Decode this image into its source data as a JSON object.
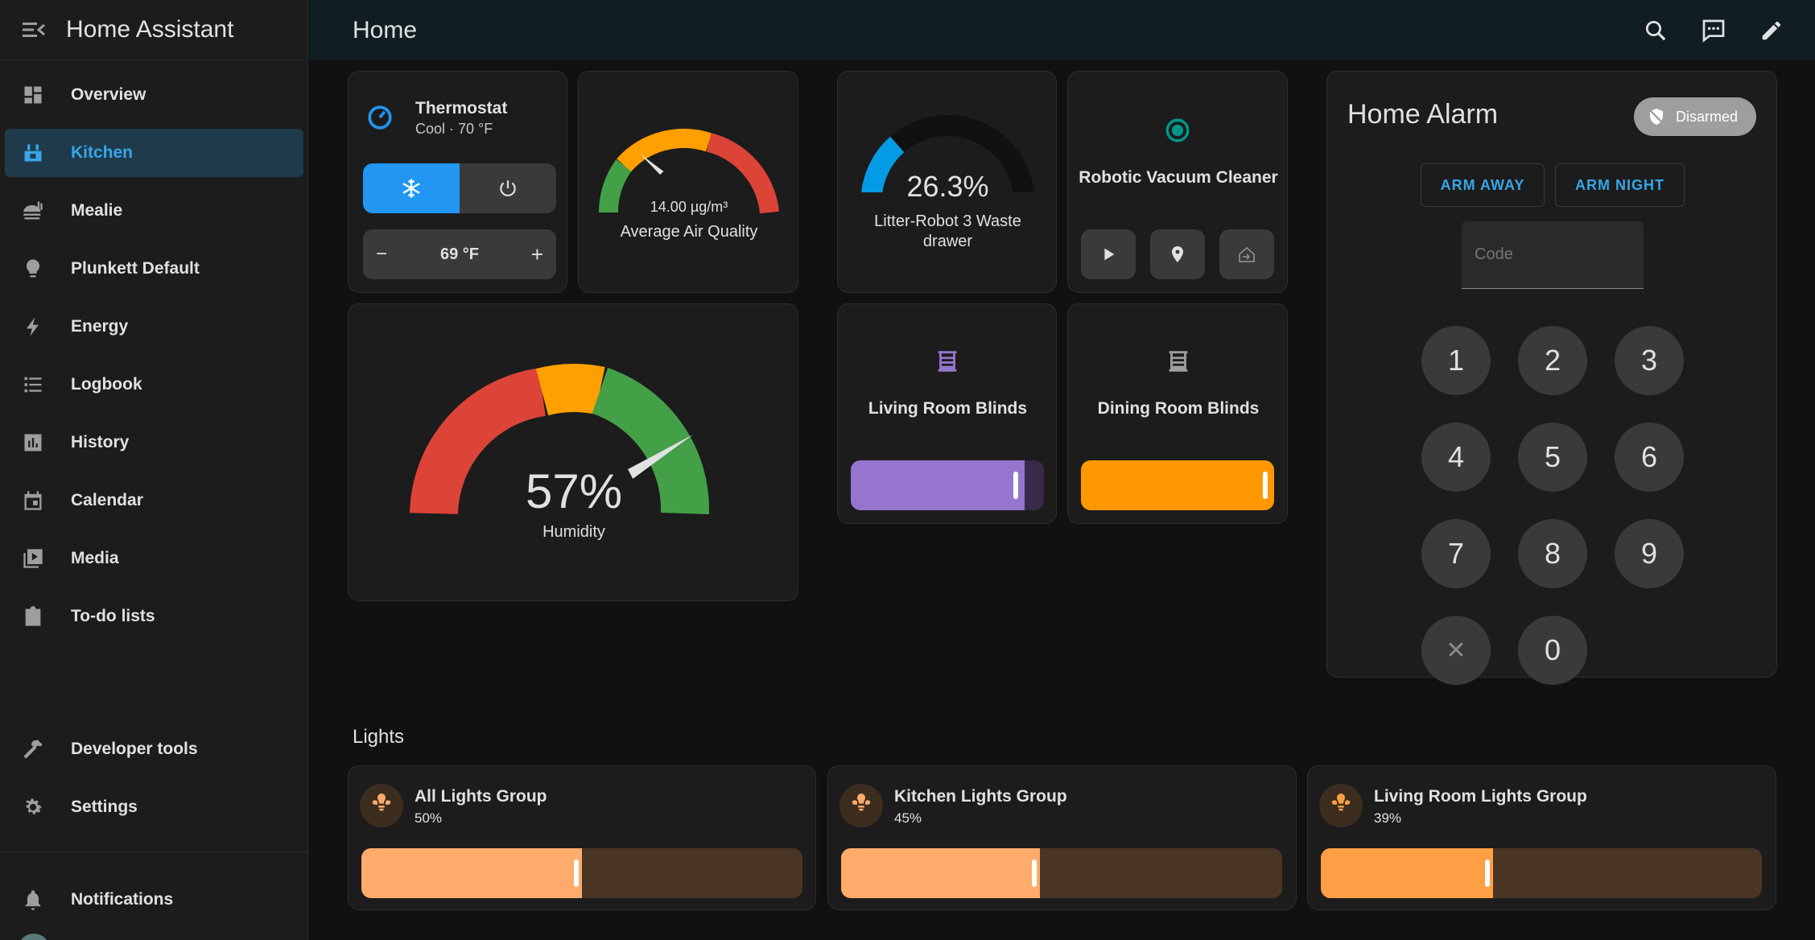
{
  "app": {
    "title": "Home Assistant"
  },
  "sidebar": {
    "items": [
      {
        "label": "Overview",
        "icon": "dashboard-icon"
      },
      {
        "label": "Kitchen",
        "icon": "kitchen-icon",
        "active": true
      },
      {
        "label": "Mealie",
        "icon": "food-icon"
      },
      {
        "label": "Plunkett Default",
        "icon": "lightbulb-icon"
      },
      {
        "label": "Energy",
        "icon": "lightning-icon"
      },
      {
        "label": "Logbook",
        "icon": "list-icon"
      },
      {
        "label": "History",
        "icon": "chart-icon"
      },
      {
        "label": "Calendar",
        "icon": "calendar-icon"
      },
      {
        "label": "Media",
        "icon": "media-icon"
      },
      {
        "label": "To-do lists",
        "icon": "clipboard-icon"
      }
    ],
    "developer_tools": "Developer tools",
    "settings": "Settings",
    "notifications": "Notifications"
  },
  "header": {
    "title": "Home"
  },
  "thermostat": {
    "name": "Thermostat",
    "state": "Cool · 70 °F",
    "target": "69 °F",
    "minus": "−",
    "plus": "+"
  },
  "air_quality": {
    "value_text": "14.00 µg/m³",
    "label": "Average Air Quality",
    "value": 14.0
  },
  "humidity": {
    "value_text": "57%",
    "label": "Humidity",
    "value": 57
  },
  "litter": {
    "value_text": "26.3%",
    "label": "Litter-Robot 3 Waste drawer",
    "value": 26.3
  },
  "vacuum": {
    "name": "Robotic Vacuum Cleaner"
  },
  "blinds": [
    {
      "name": "Living Room Blinds",
      "position": 0.9,
      "color": "#9575cd"
    },
    {
      "name": "Dining Room Blinds",
      "position": 1.0,
      "color": "#ff9800"
    }
  ],
  "alarm": {
    "title": "Home Alarm",
    "status": "Disarmed",
    "arm_away": "ARM AWAY",
    "arm_night": "ARM NIGHT",
    "code_placeholder": "Code",
    "keys": [
      "1",
      "2",
      "3",
      "4",
      "5",
      "6",
      "7",
      "8",
      "9",
      "✕",
      "0"
    ]
  },
  "lights_section": {
    "title": "Lights"
  },
  "lights": [
    {
      "name": "All Lights Group",
      "brightness_text": "50%",
      "brightness": 0.5,
      "color": "#ffab6b"
    },
    {
      "name": "Kitchen Lights Group",
      "brightness_text": "45%",
      "brightness": 0.45,
      "color": "#ffab6b"
    },
    {
      "name": "Living Room Lights Group",
      "brightness_text": "39%",
      "brightness": 0.39,
      "color": "#ff9f45"
    }
  ]
}
